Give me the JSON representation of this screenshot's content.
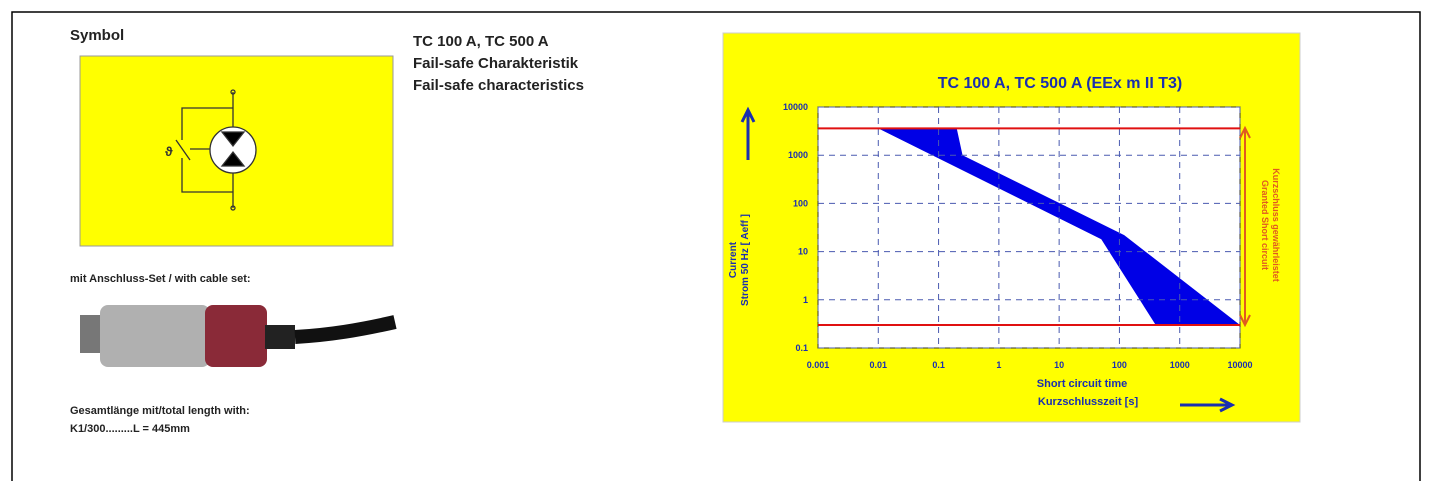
{
  "symbol": {
    "title": "Symbol"
  },
  "heading": {
    "lines": [
      "TC 100 A, TC 500 A",
      "Fail-safe Charakteristik",
      "Fail-safe characteristics"
    ]
  },
  "cable": {
    "caption": "mit Anschluss-Set / with cable set:",
    "length_lines": [
      "Gesamtlänge mit/total length  with:",
      "K1/300.........L = 445mm"
    ]
  },
  "chart_data": {
    "type": "area",
    "title": "TC 100 A, TC 500 A  (EEx m II T3)",
    "y_label": [
      "Current",
      "Strom 50 Hz [ Aeff ]"
    ],
    "x_label": [
      "Short circuit time",
      "Kurzschlusszeit  [s]"
    ],
    "annotation": [
      "Granted Short circuit",
      "Kurzschluss  gewährleistet"
    ],
    "x_log": true,
    "y_log": true,
    "grid": true,
    "xlim": [
      0.001,
      10000
    ],
    "xticks": [
      0.001,
      0.01,
      0.1,
      1,
      10,
      100,
      1000,
      10000
    ],
    "ylim": [
      0.1,
      10000
    ],
    "yticks": [
      0.1,
      1,
      10,
      100,
      1000,
      10000
    ],
    "limits": {
      "color": "#e01010",
      "values": [
        3600,
        0.3
      ]
    },
    "series": [
      {
        "color": "#0000e6",
        "x": [
          0.01,
          0.2,
          0.25,
          120,
          10000,
          400,
          50
        ],
        "values": [
          3600,
          3600,
          1000,
          22,
          0.3,
          0.3,
          18
        ]
      }
    ]
  }
}
